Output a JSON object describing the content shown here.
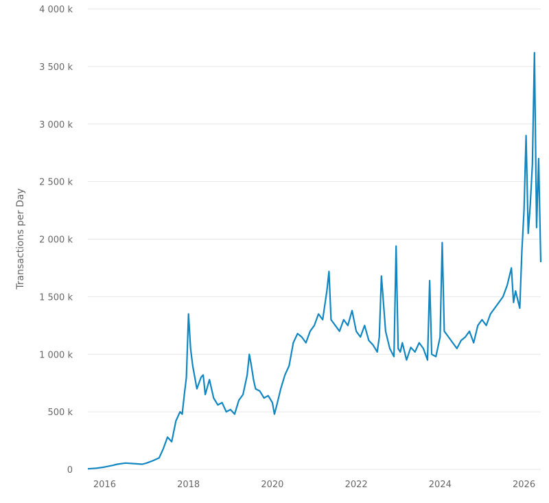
{
  "chart_data": {
    "type": "line",
    "title": "",
    "xlabel": "",
    "ylabel": "Transactions per Day",
    "xlim": [
      2015.6,
      2026.4
    ],
    "ylim": [
      0,
      4000000
    ],
    "y_ticks": [
      0,
      500000,
      1000000,
      1500000,
      2000000,
      2500000,
      3000000,
      3500000,
      4000000
    ],
    "y_tick_labels": [
      "0",
      "500 k",
      "1 000 k",
      "1 500 k",
      "2 000 k",
      "2 500 k",
      "3 000 k",
      "3 500 k",
      "4 000 k"
    ],
    "x_ticks": [
      2016,
      2018,
      2020,
      2022,
      2024,
      2026
    ],
    "x_tick_labels": [
      "2016",
      "2018",
      "2020",
      "2022",
      "2024",
      "2026"
    ],
    "grid": true,
    "legend": "none",
    "colors": {
      "line": "#0f86c1",
      "grid": "#e6e6e6",
      "text": "#666666"
    },
    "series": [
      {
        "x": [
          2015.6,
          2015.8,
          2016.0,
          2016.2,
          2016.3,
          2016.5,
          2016.7,
          2016.9,
          2017.0,
          2017.15,
          2017.3,
          2017.4,
          2017.5,
          2017.6,
          2017.7,
          2017.8,
          2017.85,
          2017.9,
          2017.95,
          2018.0,
          2018.05,
          2018.1,
          2018.2,
          2018.3,
          2018.35,
          2018.4,
          2018.5,
          2018.6,
          2018.7,
          2018.8,
          2018.9,
          2019.0,
          2019.1,
          2019.2,
          2019.3,
          2019.4,
          2019.45,
          2019.5,
          2019.55,
          2019.6,
          2019.7,
          2019.8,
          2019.9,
          2020.0,
          2020.05,
          2020.1,
          2020.2,
          2020.3,
          2020.4,
          2020.5,
          2020.6,
          2020.7,
          2020.8,
          2020.9,
          2021.0,
          2021.1,
          2021.2,
          2021.3,
          2021.35,
          2021.4,
          2021.5,
          2021.6,
          2021.7,
          2021.8,
          2021.9,
          2022.0,
          2022.1,
          2022.2,
          2022.3,
          2022.4,
          2022.5,
          2022.55,
          2022.6,
          2022.7,
          2022.8,
          2022.9,
          2022.95,
          2023.0,
          2023.05,
          2023.1,
          2023.2,
          2023.3,
          2023.4,
          2023.5,
          2023.6,
          2023.7,
          2023.75,
          2023.8,
          2023.9,
          2024.0,
          2024.05,
          2024.1,
          2024.2,
          2024.3,
          2024.4,
          2024.5,
          2024.6,
          2024.7,
          2024.8,
          2024.9,
          2025.0,
          2025.1,
          2025.2,
          2025.3,
          2025.4,
          2025.5,
          2025.6,
          2025.7,
          2025.75,
          2025.8,
          2025.9,
          2025.95,
          2026.0,
          2026.05,
          2026.1,
          2026.15,
          2026.2,
          2026.25,
          2026.3,
          2026.35,
          2026.4
        ],
        "y": [
          5000,
          10000,
          20000,
          35000,
          45000,
          55000,
          50000,
          45000,
          55000,
          75000,
          100000,
          180000,
          280000,
          240000,
          420000,
          500000,
          480000,
          650000,
          800000,
          1350000,
          1050000,
          900000,
          700000,
          800000,
          820000,
          650000,
          780000,
          620000,
          560000,
          580000,
          500000,
          520000,
          480000,
          600000,
          650000,
          820000,
          1000000,
          900000,
          780000,
          700000,
          680000,
          620000,
          640000,
          580000,
          480000,
          550000,
          700000,
          820000,
          900000,
          1100000,
          1180000,
          1150000,
          1100000,
          1200000,
          1250000,
          1350000,
          1300000,
          1550000,
          1720000,
          1300000,
          1250000,
          1200000,
          1300000,
          1250000,
          1380000,
          1200000,
          1150000,
          1250000,
          1120000,
          1080000,
          1020000,
          1150000,
          1680000,
          1200000,
          1050000,
          980000,
          1940000,
          1050000,
          1020000,
          1100000,
          950000,
          1060000,
          1020000,
          1100000,
          1050000,
          950000,
          1640000,
          1000000,
          980000,
          1150000,
          1970000,
          1200000,
          1150000,
          1100000,
          1050000,
          1120000,
          1150000,
          1200000,
          1100000,
          1250000,
          1300000,
          1250000,
          1350000,
          1400000,
          1450000,
          1500000,
          1600000,
          1750000,
          1450000,
          1550000,
          1400000,
          1900000,
          2250000,
          2900000,
          2050000,
          2300000,
          2650000,
          3620000,
          2100000,
          2700000,
          1800000
        ]
      }
    ]
  }
}
